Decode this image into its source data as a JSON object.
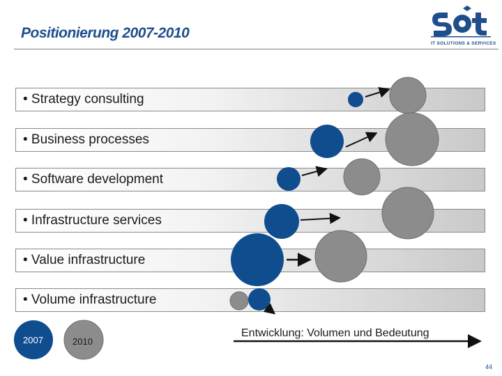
{
  "slide": {
    "title": "Positionierung 2007-2010",
    "page_number": "44"
  },
  "logo": {
    "brand": "s&t",
    "tagline": "IT SOLUTIONS & SERVICES"
  },
  "colors": {
    "blue": "#0f4d8f",
    "grey": "#8c8c8c",
    "title": "#1f4e8c",
    "arrow": "#111111"
  },
  "rows": [
    {
      "label": "• Strategy consulting"
    },
    {
      "label": "• Business processes"
    },
    {
      "label": "• Software development"
    },
    {
      "label": "• Infrastructure services"
    },
    {
      "label": "• Value infrastructure"
    },
    {
      "label": "• Volume infrastructure"
    }
  ],
  "legend": {
    "year_2007": "2007",
    "year_2010": "2010"
  },
  "axis_caption": "Entwicklung: Volumen und Bedeutung"
}
